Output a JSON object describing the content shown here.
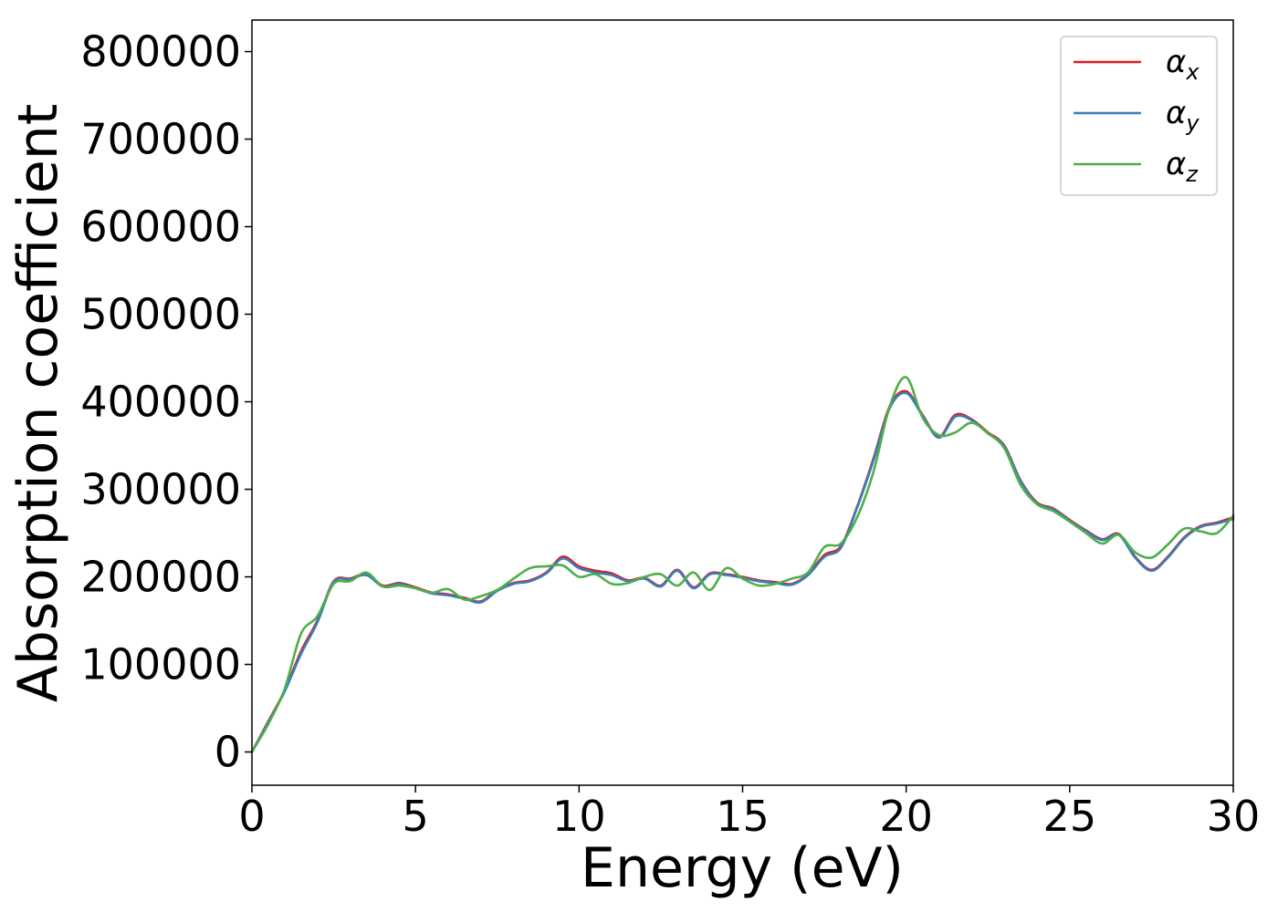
{
  "chart_data": {
    "type": "line",
    "title": "",
    "xlabel": "Energy (eV)",
    "ylabel": "Absorption coefficient",
    "xlim": [
      0,
      30
    ],
    "ylim": [
      -38000,
      836000
    ],
    "xticks": [
      0,
      5,
      10,
      15,
      20,
      25,
      30
    ],
    "xtick_labels": [
      "0",
      "5",
      "10",
      "15",
      "20",
      "25",
      "30"
    ],
    "yticks": [
      0,
      100000,
      200000,
      300000,
      400000,
      500000,
      600000,
      700000,
      800000
    ],
    "ytick_labels": [
      "0",
      "100000",
      "200000",
      "300000",
      "400000",
      "500000",
      "600000",
      "700000",
      "800000"
    ],
    "grid": false,
    "legend_position": "top-right",
    "series": [
      {
        "name": "α",
        "subscript": "x",
        "color": "#e41a1c",
        "x": [
          0,
          0.5,
          1,
          1.5,
          2,
          2.5,
          3,
          3.5,
          4,
          4.5,
          5,
          5.5,
          6,
          6.5,
          7,
          7.5,
          8,
          8.5,
          9,
          9.5,
          10,
          10.5,
          11,
          11.5,
          12,
          12.5,
          13,
          13.5,
          14,
          14.5,
          15,
          15.5,
          16,
          16.5,
          17,
          17.5,
          18,
          18.5,
          19,
          19.5,
          20,
          20.5,
          21,
          21.5,
          22,
          22.5,
          23,
          23.5,
          24,
          24.5,
          25,
          25.5,
          26,
          26.5,
          27,
          27.5,
          28,
          28.5,
          29,
          29.5,
          30
        ],
        "values": [
          0,
          35000,
          70000,
          115000,
          150000,
          195000,
          198000,
          203000,
          190000,
          193000,
          188000,
          182000,
          180000,
          176000,
          172000,
          185000,
          193000,
          196000,
          205000,
          223000,
          212000,
          207000,
          204000,
          196000,
          199000,
          190000,
          208000,
          188000,
          204000,
          203000,
          200000,
          196000,
          194000,
          192000,
          203000,
          225000,
          235000,
          280000,
          335000,
          395000,
          412000,
          385000,
          360000,
          385000,
          380000,
          365000,
          350000,
          310000,
          285000,
          278000,
          265000,
          253000,
          243000,
          249000,
          223000,
          208000,
          223000,
          245000,
          258000,
          262000,
          268000
        ]
      },
      {
        "name": "α",
        "subscript": "y",
        "color": "#377eb8",
        "x": [
          0,
          0.5,
          1,
          1.5,
          2,
          2.5,
          3,
          3.5,
          4,
          4.5,
          5,
          5.5,
          6,
          6.5,
          7,
          7.5,
          8,
          8.5,
          9,
          9.5,
          10,
          10.5,
          11,
          11.5,
          12,
          12.5,
          13,
          13.5,
          14,
          14.5,
          15,
          15.5,
          16,
          16.5,
          17,
          17.5,
          18,
          18.5,
          19,
          19.5,
          20,
          20.5,
          21,
          21.5,
          22,
          22.5,
          23,
          23.5,
          24,
          24.5,
          25,
          25.5,
          26,
          26.5,
          27,
          27.5,
          28,
          28.5,
          29,
          29.5,
          30
        ],
        "values": [
          0,
          34000,
          69000,
          112000,
          148000,
          194000,
          197000,
          202000,
          189000,
          192000,
          187000,
          181000,
          179000,
          175000,
          171000,
          184000,
          192000,
          195000,
          204000,
          221000,
          210000,
          205000,
          202000,
          195000,
          198000,
          189000,
          207000,
          187000,
          203000,
          202000,
          199000,
          195000,
          193000,
          191000,
          202000,
          223000,
          233000,
          279000,
          333000,
          393000,
          410000,
          384000,
          359000,
          383000,
          379000,
          364000,
          349000,
          309000,
          284000,
          277000,
          264000,
          252000,
          242000,
          248000,
          222000,
          207000,
          222000,
          244000,
          257000,
          261000,
          266000
        ]
      },
      {
        "name": "α",
        "subscript": "z",
        "color": "#4daf4a",
        "x": [
          0,
          0.5,
          1,
          1.5,
          2,
          2.5,
          3,
          3.5,
          4,
          4.5,
          5,
          5.5,
          6,
          6.5,
          7,
          7.5,
          8,
          8.5,
          9,
          9.5,
          10,
          10.5,
          11,
          11.5,
          12,
          12.5,
          13,
          13.5,
          14,
          14.5,
          15,
          15.5,
          16,
          16.5,
          17,
          17.5,
          18,
          18.5,
          19,
          19.5,
          20,
          20.5,
          21,
          21.5,
          22,
          22.5,
          23,
          23.5,
          24,
          24.5,
          25,
          25.5,
          26,
          26.5,
          27,
          27.5,
          28,
          28.5,
          29,
          29.5,
          30
        ],
        "values": [
          0,
          32000,
          72000,
          135000,
          155000,
          192000,
          195000,
          205000,
          189000,
          190000,
          187000,
          182000,
          186000,
          174000,
          178000,
          185000,
          198000,
          210000,
          212000,
          213000,
          200000,
          203000,
          192000,
          193000,
          200000,
          203000,
          190000,
          205000,
          185000,
          210000,
          198000,
          190000,
          192000,
          198000,
          205000,
          234000,
          238000,
          268000,
          320000,
          395000,
          428000,
          382000,
          362000,
          365000,
          376000,
          364000,
          347000,
          305000,
          283000,
          275000,
          263000,
          250000,
          238000,
          248000,
          228000,
          222000,
          237000,
          255000,
          252000,
          250000,
          270000
        ]
      }
    ]
  }
}
